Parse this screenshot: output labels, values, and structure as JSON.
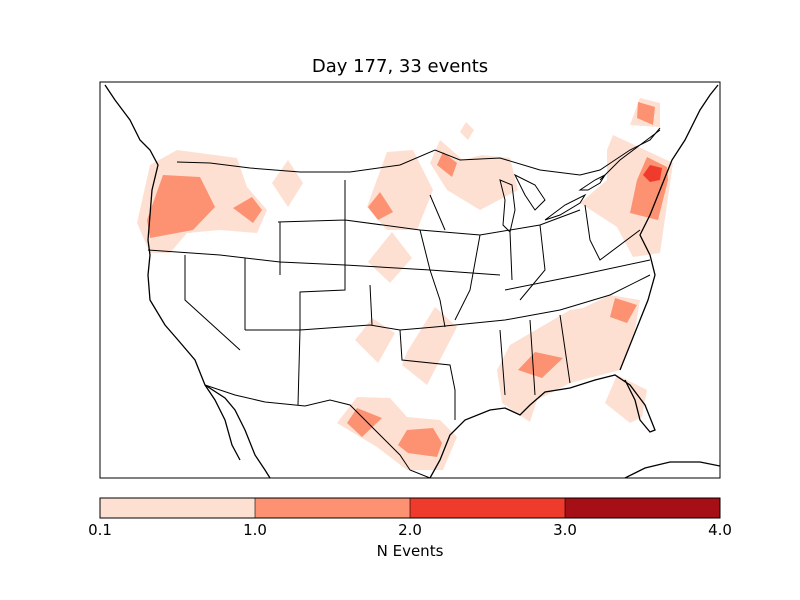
{
  "title": "Day 177, 33 events",
  "colorbar": {
    "label": "N Events",
    "ticks": [
      "0.1",
      "1.0",
      "2.0",
      "3.0",
      "4.0"
    ],
    "bins": [
      {
        "min": 0.1,
        "max": 1.0,
        "color": "#fee0d2"
      },
      {
        "min": 1.0,
        "max": 2.0,
        "color": "#fc9272"
      },
      {
        "min": 2.0,
        "max": 3.0,
        "color": "#ef3b2c"
      },
      {
        "min": 3.0,
        "max": 4.0,
        "color": "#a50f15"
      }
    ]
  }
}
